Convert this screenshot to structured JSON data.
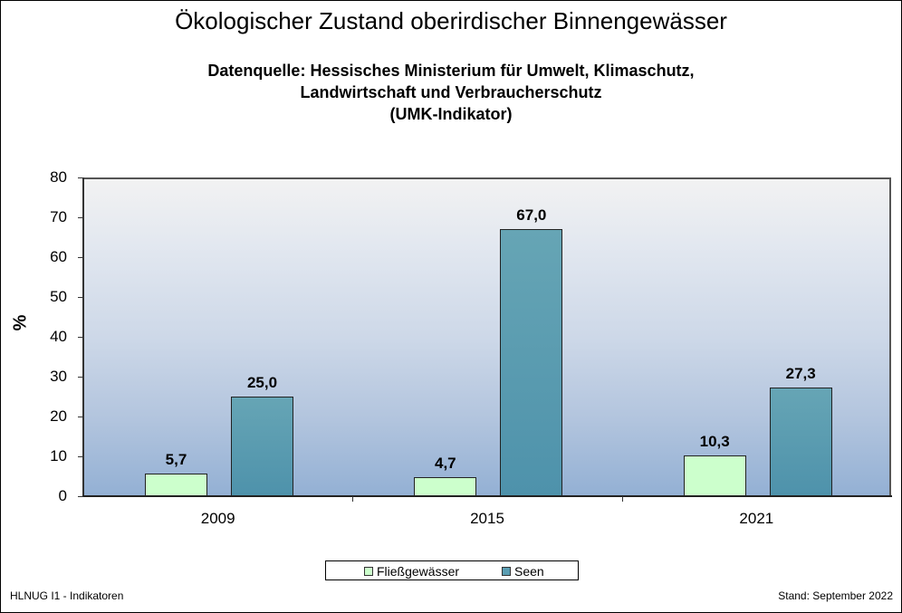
{
  "title": "Ökologischer Zustand oberirdischer Binnengewässer",
  "subtitle_lines": [
    "Datenquelle: Hessisches Ministerium für Umwelt, Klimaschutz,",
    "Landwirtschaft und Verbraucherschutz",
    "(UMK-Indikator)"
  ],
  "footer": {
    "left": "HLNUG I1 - Indikatoren",
    "right": "Stand: September 2022"
  },
  "colors": {
    "fliessgewaesser": "#ccffcc",
    "seen": "#5a9db2"
  },
  "chart_data": {
    "type": "bar",
    "title": "Ökologischer Zustand oberirdischer Binnengewässer",
    "xlabel": "",
    "ylabel": "%",
    "ylim": [
      0,
      80
    ],
    "yticks": [
      "0",
      "10",
      "20",
      "30",
      "40",
      "50",
      "60",
      "70",
      "80"
    ],
    "categories": [
      "2009",
      "2015",
      "2021"
    ],
    "series": [
      {
        "name": "Fließgewässer",
        "values": [
          5.7,
          4.7,
          10.3
        ],
        "labels": [
          "5,7",
          "4,7",
          "10,3"
        ]
      },
      {
        "name": "Seen",
        "values": [
          25.0,
          67.0,
          27.3
        ],
        "labels": [
          "25,0",
          "67,0",
          "27,3"
        ]
      }
    ],
    "legend_position": "bottom",
    "grid": false
  }
}
